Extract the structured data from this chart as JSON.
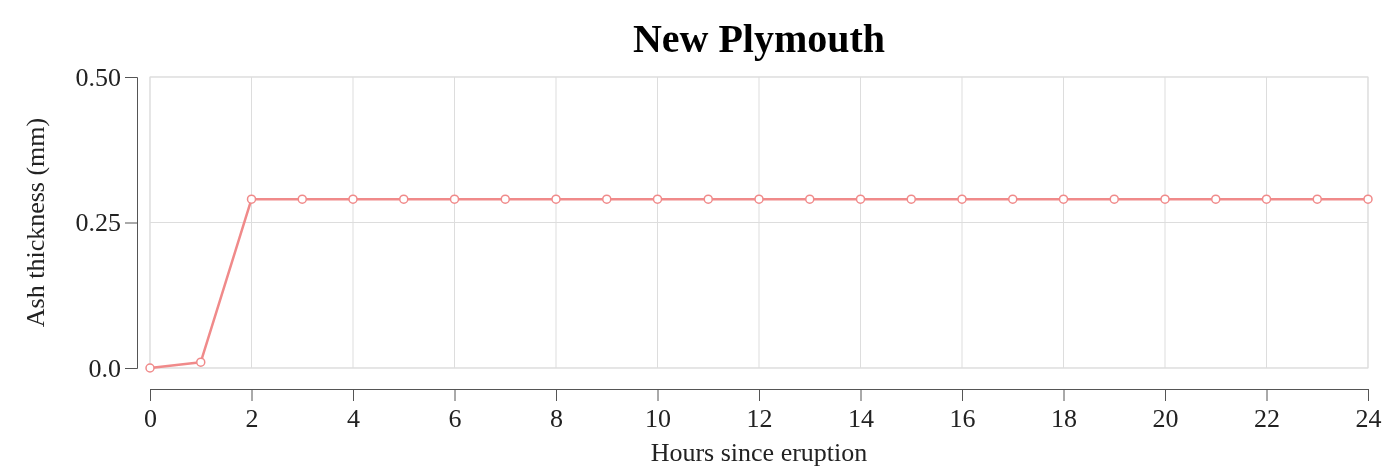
{
  "chart_data": {
    "type": "line",
    "title": "New Plymouth",
    "xlabel": "Hours since eruption",
    "ylabel": "Ash thickness (mm)",
    "x": [
      0,
      1,
      2,
      3,
      4,
      5,
      6,
      7,
      8,
      9,
      10,
      11,
      12,
      13,
      14,
      15,
      16,
      17,
      18,
      19,
      20,
      21,
      22,
      23,
      24
    ],
    "series": [
      {
        "color": "#f08a8a",
        "values": [
          0,
          0.01,
          0.29,
          0.29,
          0.29,
          0.29,
          0.29,
          0.29,
          0.29,
          0.29,
          0.29,
          0.29,
          0.29,
          0.29,
          0.29,
          0.29,
          0.29,
          0.29,
          0.29,
          0.29,
          0.29,
          0.29,
          0.29,
          0.29,
          0.29
        ]
      }
    ],
    "xlim": [
      0,
      24
    ],
    "xticks": [
      0,
      2,
      4,
      6,
      8,
      10,
      12,
      14,
      16,
      18,
      20,
      22,
      24
    ],
    "ylim": [
      0,
      0.5
    ],
    "yticks": [
      {
        "value": 0,
        "label": "0.0"
      },
      0.25,
      {
        "value": 0.5,
        "label": "0.50"
      }
    ],
    "grid": true,
    "marker": "circle",
    "line_style": "solid"
  }
}
